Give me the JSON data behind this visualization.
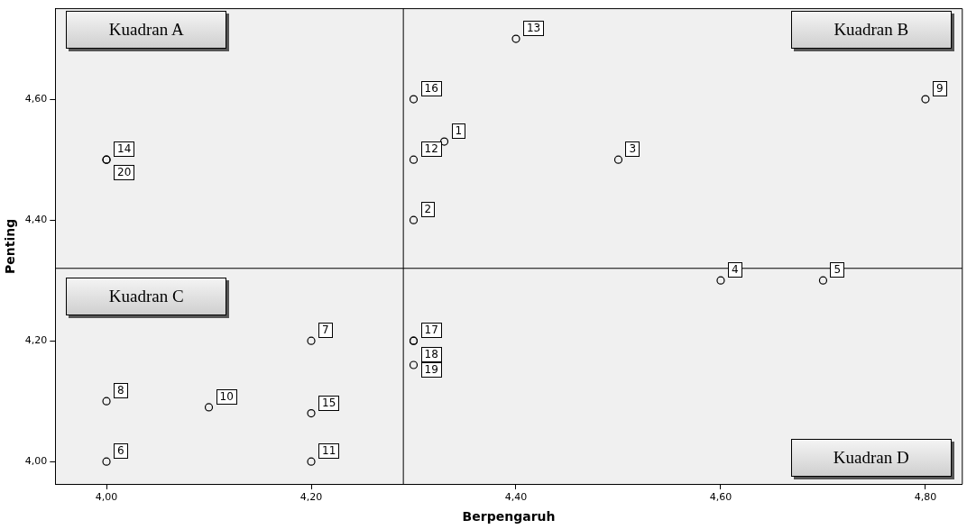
{
  "chart_data": {
    "type": "scatter",
    "xlabel": "Berpengaruh",
    "ylabel": "Penting",
    "x": [
      4.33,
      4.3,
      4.5,
      4.6,
      4.7,
      4.0,
      4.2,
      4.0,
      4.8,
      4.1,
      4.2,
      4.3,
      4.4,
      4.0,
      4.2,
      4.3,
      4.3,
      4.3,
      4.3,
      4.0
    ],
    "series": [
      {
        "color": "#000000",
        "values": [
          4.53,
          4.4,
          4.5,
          4.3,
          4.3,
          4.0,
          4.2,
          4.1,
          4.6,
          4.09,
          4.0,
          4.5,
          4.7,
          4.5,
          4.08,
          4.6,
          4.2,
          4.16,
          4.2,
          4.5
        ]
      }
    ],
    "marker": "circle",
    "grid": false,
    "legend": false,
    "xlim": [
      3.95,
      4.836
    ],
    "xticks": [
      {
        "value": 4.0,
        "label": "4,00"
      },
      {
        "value": 4.2,
        "label": "4,20"
      },
      {
        "value": 4.4,
        "label": "4,40"
      },
      {
        "value": 4.6,
        "label": "4,60"
      },
      {
        "value": 4.8,
        "label": "4,80"
      }
    ],
    "ylim": [
      3.963,
      4.75
    ],
    "yticks": [
      {
        "value": 4.0,
        "label": "4,00"
      },
      {
        "value": 4.2,
        "label": "4,20"
      },
      {
        "value": 4.4,
        "label": "4,40"
      },
      {
        "value": 4.6,
        "label": "4,60"
      }
    ],
    "ref_lines": [
      {
        "axis": "x",
        "value": 4.29,
        "color": "#000000"
      },
      {
        "axis": "y",
        "value": 4.32,
        "color": "#000000"
      }
    ],
    "annotations": [
      "Kuadran A",
      "Kuadran B",
      "Kuadran C",
      "Kuadran D",
      {
        "text": "1",
        "x": 4.33,
        "y": 4.53
      },
      {
        "text": "2",
        "x": 4.3,
        "y": 4.4
      },
      {
        "text": "3",
        "x": 4.5,
        "y": 4.5
      },
      {
        "text": "4",
        "x": 4.6,
        "y": 4.3
      },
      {
        "text": "5",
        "x": 4.7,
        "y": 4.3
      },
      {
        "text": "6",
        "x": 4.0,
        "y": 4.0
      },
      {
        "text": "7",
        "x": 4.2,
        "y": 4.2
      },
      {
        "text": "8",
        "x": 4.0,
        "y": 4.1
      },
      {
        "text": "9",
        "x": 4.8,
        "y": 4.6
      },
      {
        "text": "10",
        "x": 4.1,
        "y": 4.09
      },
      {
        "text": "11",
        "x": 4.2,
        "y": 4.0
      },
      {
        "text": "12",
        "x": 4.3,
        "y": 4.5
      },
      {
        "text": "13",
        "x": 4.4,
        "y": 4.7
      },
      {
        "text": "14",
        "x": 4.0,
        "y": 4.5
      },
      {
        "text": "15",
        "x": 4.2,
        "y": 4.08
      },
      {
        "text": "16",
        "x": 4.3,
        "y": 4.6
      },
      {
        "text": "17",
        "x": 4.3,
        "y": 4.2
      },
      {
        "text": "18",
        "x": 4.3,
        "y": 4.16
      },
      {
        "text": "19",
        "x": 4.3,
        "y": 4.2
      },
      {
        "text": "20",
        "x": 4.0,
        "y": 4.5
      }
    ]
  }
}
